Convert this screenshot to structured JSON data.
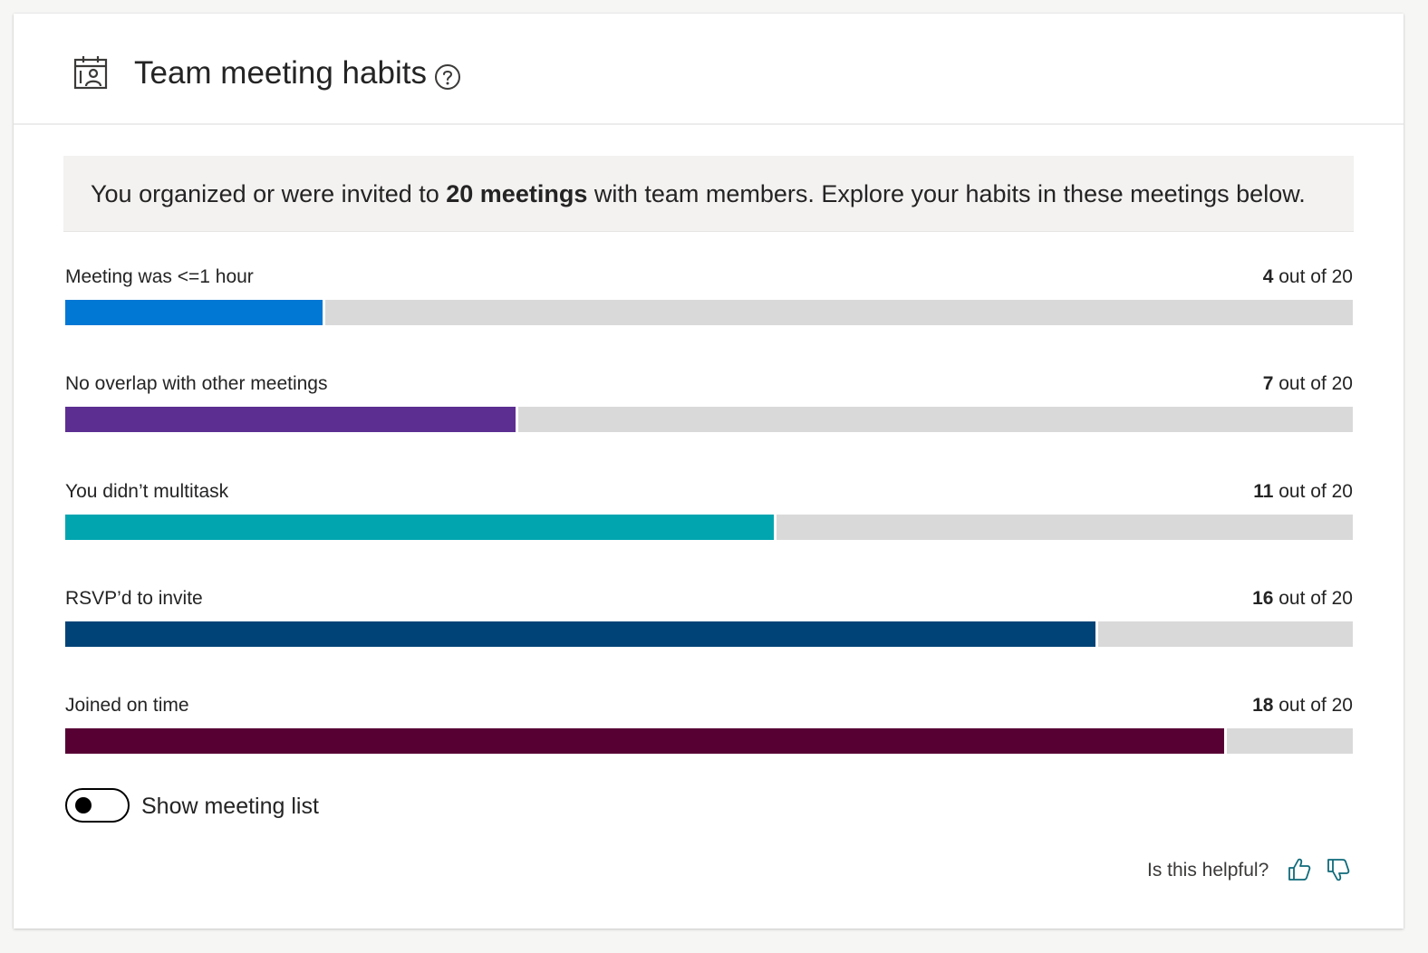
{
  "header": {
    "title": "Team meeting habits",
    "icon": "meeting-calendar-icon",
    "help_icon": "question-circle-icon"
  },
  "summary": {
    "prefix": "You organized or were invited to ",
    "highlight": "20 meetings",
    "suffix": " with team members. Explore your habits in these meetings below."
  },
  "metrics": [
    {
      "label": "Meeting was <=1 hour",
      "count": "4",
      "suffix": " out of 20",
      "value": 4,
      "total": 20,
      "color": "#0078d4"
    },
    {
      "label": "No overlap with other meetings",
      "count": "7",
      "suffix": " out of 20",
      "value": 7,
      "total": 20,
      "color": "#5c2e91"
    },
    {
      "label": "You didn’t multitask",
      "count": "11",
      "suffix": " out of 20",
      "value": 11,
      "total": 20,
      "color": "#00a5b0"
    },
    {
      "label": "RSVP’d to invite",
      "count": "16",
      "suffix": " out of 20",
      "value": 16,
      "total": 20,
      "color": "#004377"
    },
    {
      "label": "Joined on time",
      "count": "18",
      "suffix": " out of 20",
      "value": 18,
      "total": 20,
      "color": "#570034"
    }
  ],
  "colors": {
    "track": "#d9d9d9",
    "accent": "#0f6a7a"
  },
  "toggle": {
    "label": "Show meeting list",
    "on": false
  },
  "feedback": {
    "prompt": "Is this helpful?",
    "like_icon": "thumbs-up-icon",
    "dislike_icon": "thumbs-down-icon"
  }
}
